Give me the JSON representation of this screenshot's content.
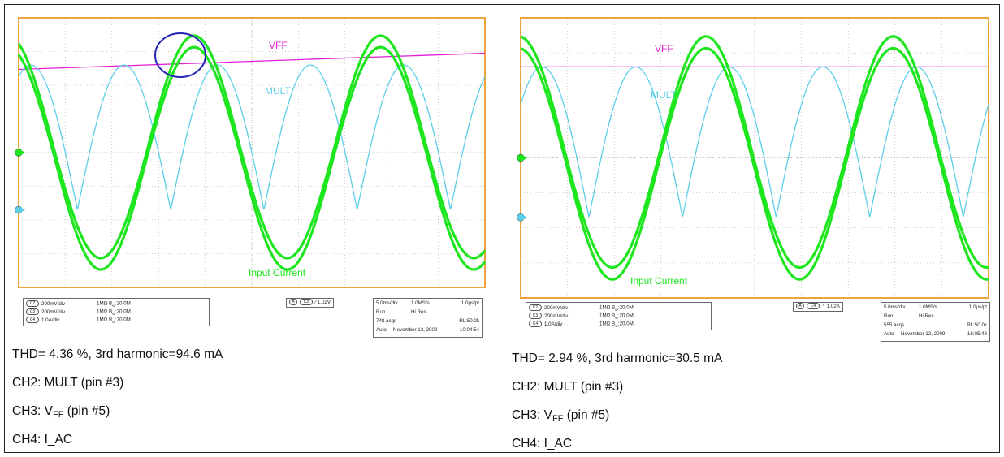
{
  "chart_data": [
    {
      "type": "line",
      "series": [
        {
          "name": "VFF",
          "color": "#e21fd6",
          "shape": "dc-line",
          "level_div": 2.47,
          "end_level_div": 2.95
        },
        {
          "name": "MULT",
          "color": "#5ccfe8",
          "shape": "rectified-sine",
          "peak_div": 2.6,
          "zero_div": -1.7,
          "period_ms": 10
        },
        {
          "name": "Input Current",
          "color": "#1ee61e",
          "shape": "sine",
          "amplitude_div": 3.3,
          "offset_div": 0,
          "period_ms": 20,
          "ripple": true
        }
      ],
      "annotations": [
        "VFF",
        "MULT",
        "Input Current"
      ],
      "circle_marker": true,
      "grid": true,
      "settings": {
        "channels": [
          {
            "chip": "C2",
            "scale": "200mV/div",
            "impedance": "1MΩ",
            "bw": "B",
            "bwsub": "W",
            "bwval": ":20.0M"
          },
          {
            "chip": "C3",
            "scale": "200mV/div",
            "impedance": "1MΩ",
            "bw": "B",
            "bwsub": "W",
            "bwval": ":20.0M"
          },
          {
            "chip": "C4",
            "scale": "1.0A/div",
            "impedance": "1MΩ",
            "bw": "B",
            "bwsub": "W",
            "bwval": ":20.0M"
          }
        ],
        "trigger": {
          "mode": "A",
          "channel": "C3",
          "slope": "∕",
          "level": "1.02V"
        },
        "timebase": {
          "tdiv": "5.0ms/div",
          "rate": "1.0MS/s",
          "res": "1.0µs/pt",
          "run": "Run",
          "acq": "Hi Res",
          "acqs": "748 acqs",
          "rl": "RL:50.0k",
          "auto": "Auto",
          "date": "November 13, 2009",
          "time": "10:04:54"
        }
      },
      "caption": {
        "thd": "THD= 4.36 %, 3rd harmonic=94.6 mA",
        "ch2": "CH2: MULT (pin #3)",
        "ch3_main": "CH3: V",
        "ch3_sub": "FF",
        "ch3_rest": " (pin #5)",
        "ch4": "CH4: I_AC"
      }
    },
    {
      "type": "line",
      "series": [
        {
          "name": "VFF",
          "color": "#e21fd6",
          "shape": "dc-line",
          "level_div": 2.6,
          "end_level_div": 2.6
        },
        {
          "name": "MULT",
          "color": "#5ccfe8",
          "shape": "rectified-sine",
          "peak_div": 2.6,
          "zero_div": -1.7,
          "period_ms": 10
        },
        {
          "name": "Input Current",
          "color": "#1ee61e",
          "shape": "sine",
          "amplitude_div": 3.3,
          "offset_div": 0,
          "period_ms": 20,
          "ripple": true
        }
      ],
      "annotations": [
        "VFF",
        "MULT",
        "Input Current"
      ],
      "circle_marker": false,
      "grid": true,
      "settings": {
        "channels": [
          {
            "chip": "C2",
            "scale": "200mV/div",
            "impedance": "1MΩ",
            "bw": "B",
            "bwsub": "W",
            "bwval": ":20.0M"
          },
          {
            "chip": "C3",
            "scale": "200mV/div",
            "impedance": "1MΩ",
            "bw": "B",
            "bwsub": "W",
            "bwval": ":20.0M"
          },
          {
            "chip": "C4",
            "scale": "1.0A/div",
            "impedance": "1MΩ",
            "bw": "B",
            "bwsub": "W",
            "bwval": ":20.0M"
          }
        ],
        "trigger": {
          "mode": "A",
          "channel": "C4",
          "slope": "∖",
          "level": "1.02A"
        },
        "timebase": {
          "tdiv": "5.0ms/div",
          "rate": "1.0MS/s",
          "res": "1.0µs/pt",
          "run": "Run",
          "acq": "Hi Res",
          "acqs": "555 acqs",
          "rl": "RL:50.0k",
          "auto": "Auto",
          "date": "November 12, 2009",
          "time": "16:05:48"
        }
      },
      "caption": {
        "thd": "THD= 2.94 %, 3rd harmonic=30.5 mA",
        "ch2": "CH2: MULT (pin #3)",
        "ch3_main": "CH3: V",
        "ch3_sub": "FF",
        "ch3_rest": " (pin #5)",
        "ch4": "CH4: I_AC"
      }
    }
  ]
}
